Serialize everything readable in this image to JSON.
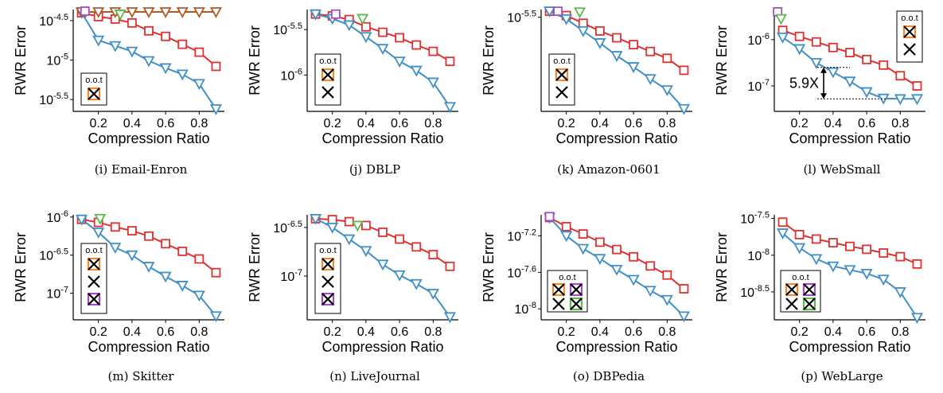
{
  "colors": {
    "red": "#e03030",
    "blue": "#3f8fc8",
    "brown": "#b05a28",
    "green": "#5cb84a",
    "purple": "#a24ec0",
    "orange": "#f08a30",
    "black": "#000000"
  },
  "chart_data": [
    {
      "type": "line",
      "caption": "(i) Email-Enron",
      "xlabel": "Compression Ratio",
      "ylabel": "RWR Error",
      "xlim": [
        0.05,
        0.95
      ],
      "x_ticks": [
        "0.2",
        "0.4",
        "0.6",
        "0.8"
      ],
      "ylim_exp": [
        -5.65,
        -4.36
      ],
      "y_ticks": [
        {
          "exp": -4.5,
          "label": "-4.5"
        },
        {
          "exp": -5,
          "label": "-5"
        },
        {
          "exp": -5.5,
          "label": "-5.5"
        }
      ],
      "series": [
        {
          "color": "red",
          "marker": "square",
          "x": [
            0.1,
            0.2,
            0.3,
            0.4,
            0.5,
            0.6,
            0.7,
            0.8,
            0.9
          ],
          "exp": [
            -4.4,
            -4.45,
            -4.48,
            -4.53,
            -4.63,
            -4.7,
            -4.8,
            -4.9,
            -5.08
          ]
        },
        {
          "color": "blue",
          "marker": "triangle",
          "x": [
            0.1,
            0.2,
            0.3,
            0.4,
            0.5,
            0.6,
            0.7,
            0.8,
            0.9
          ],
          "exp": [
            -4.4,
            -4.75,
            -4.82,
            -4.89,
            -5.01,
            -5.1,
            -5.18,
            -5.3,
            -5.62
          ]
        },
        {
          "color": "brown",
          "marker": "triangle",
          "x": [
            0.1,
            0.2,
            0.3,
            0.4,
            0.5,
            0.6,
            0.7,
            0.8,
            0.9
          ],
          "exp": [
            -4.39,
            -4.39,
            -4.39,
            -4.39,
            -4.39,
            -4.39,
            -4.39,
            -4.39,
            -4.39
          ]
        },
        {
          "color": "purple",
          "marker": "square",
          "x": [
            0.12
          ],
          "exp": [
            -4.38
          ]
        },
        {
          "color": "green",
          "marker": "triangle",
          "x": [
            0.33
          ],
          "exp": [
            -4.42
          ]
        }
      ],
      "oot": {
        "label": "o.o.t",
        "crosses": [
          "orange"
        ]
      }
    },
    {
      "type": "line",
      "caption": "(j) DBLP",
      "xlabel": "Compression Ratio",
      "ylabel": "RWR Error",
      "xlim": [
        0.05,
        0.95
      ],
      "x_ticks": [
        "0.2",
        "0.4",
        "0.6",
        "0.8"
      ],
      "ylim_exp": [
        -6.4,
        -5.28
      ],
      "y_ticks": [
        {
          "exp": -5.5,
          "label": "-5.5"
        },
        {
          "exp": -6,
          "label": "-6"
        }
      ],
      "series": [
        {
          "color": "red",
          "marker": "square",
          "x": [
            0.1,
            0.2,
            0.3,
            0.4,
            0.5,
            0.6,
            0.7,
            0.8,
            0.9
          ],
          "exp": [
            -5.33,
            -5.35,
            -5.39,
            -5.47,
            -5.53,
            -5.59,
            -5.67,
            -5.74,
            -5.85
          ]
        },
        {
          "color": "blue",
          "marker": "triangle",
          "x": [
            0.1,
            0.2,
            0.3,
            0.4,
            0.5,
            0.6,
            0.7,
            0.8,
            0.9
          ],
          "exp": [
            -5.33,
            -5.38,
            -5.45,
            -5.58,
            -5.71,
            -5.85,
            -5.95,
            -6.08,
            -6.35
          ]
        },
        {
          "color": "purple",
          "marker": "square",
          "x": [
            0.22
          ],
          "exp": [
            -5.33
          ]
        },
        {
          "color": "green",
          "marker": "triangle",
          "x": [
            0.38
          ],
          "exp": [
            -5.38
          ]
        }
      ],
      "oot": {
        "label": "o.o.t",
        "crosses": [
          "orange",
          "black"
        ]
      }
    },
    {
      "type": "line",
      "caption": "(k) Amazon-0601",
      "xlabel": "Compression Ratio",
      "ylabel": "RWR Error",
      "xlim": [
        0.05,
        0.95
      ],
      "x_ticks": [
        "0.2",
        "0.4",
        "0.6",
        "0.8"
      ],
      "ylim_exp": [
        -6.6,
        -5.41
      ],
      "y_ticks": [
        {
          "exp": -5.5,
          "label": "-5.5"
        }
      ],
      "series": [
        {
          "color": "red",
          "marker": "square",
          "x": [
            0.1,
            0.2,
            0.3,
            0.4,
            0.5,
            0.6,
            0.7,
            0.8,
            0.9
          ],
          "exp": [
            -5.43,
            -5.48,
            -5.57,
            -5.66,
            -5.74,
            -5.82,
            -5.9,
            -5.98,
            -6.12
          ]
        },
        {
          "color": "blue",
          "marker": "triangle",
          "x": [
            0.1,
            0.2,
            0.3,
            0.4,
            0.5,
            0.6,
            0.7,
            0.8,
            0.9
          ],
          "exp": [
            -5.43,
            -5.52,
            -5.66,
            -5.8,
            -5.95,
            -6.08,
            -6.22,
            -6.35,
            -6.57
          ]
        },
        {
          "color": "purple",
          "marker": "square",
          "x": [
            0.15
          ],
          "exp": [
            -5.43
          ]
        },
        {
          "color": "green",
          "marker": "triangle",
          "x": [
            0.28
          ],
          "exp": [
            -5.44
          ]
        }
      ],
      "oot": {
        "label": "o.o.t",
        "crosses": [
          "orange",
          "black"
        ]
      }
    },
    {
      "type": "line",
      "caption": "(l) WebSmall",
      "xlabel": "Compression Ratio",
      "ylabel": "RWR Error",
      "xlim": [
        0.05,
        0.95
      ],
      "x_ticks": [
        "0.2",
        "0.4",
        "0.6",
        "0.8"
      ],
      "ylim_exp": [
        -7.55,
        -5.35
      ],
      "y_ticks": [
        {
          "exp": -6,
          "label": "-6"
        },
        {
          "exp": -7,
          "label": "-7"
        }
      ],
      "series": [
        {
          "color": "red",
          "marker": "square",
          "x": [
            0.1,
            0.2,
            0.3,
            0.4,
            0.5,
            0.6,
            0.7,
            0.8,
            0.9
          ],
          "exp": [
            -5.8,
            -5.93,
            -6.05,
            -6.17,
            -6.28,
            -6.43,
            -6.55,
            -6.78,
            -7.0
          ]
        },
        {
          "color": "blue",
          "marker": "triangle",
          "x": [
            0.1,
            0.2,
            0.3,
            0.4,
            0.5,
            0.6,
            0.7,
            0.8,
            0.9
          ],
          "exp": [
            -5.95,
            -6.2,
            -6.5,
            -6.7,
            -6.9,
            -7.13,
            -7.27,
            -7.28,
            -7.28
          ]
        },
        {
          "color": "purple",
          "marker": "square",
          "x": [
            0.07
          ],
          "exp": [
            -5.4
          ]
        },
        {
          "color": "green",
          "marker": "triangle",
          "x": [
            0.09
          ],
          "exp": [
            -5.55
          ]
        }
      ],
      "oot": {
        "label": "o.o.t",
        "crosses": [
          "orange",
          "black"
        ]
      },
      "annotation": "5.9X"
    },
    {
      "type": "line",
      "caption": "(m) Skitter",
      "xlabel": "Compression Ratio",
      "ylabel": "RWR Error",
      "xlim": [
        0.05,
        0.95
      ],
      "x_ticks": [
        "0.2",
        "0.4",
        "0.6",
        "0.8"
      ],
      "ylim_exp": [
        -7.35,
        -5.97
      ],
      "y_ticks": [
        {
          "exp": -6,
          "label": "-6"
        },
        {
          "exp": -6.5,
          "label": "-6.5"
        },
        {
          "exp": -7,
          "label": "-7"
        }
      ],
      "series": [
        {
          "color": "red",
          "marker": "square",
          "x": [
            0.1,
            0.2,
            0.3,
            0.4,
            0.5,
            0.6,
            0.7,
            0.8,
            0.9
          ],
          "exp": [
            -6.03,
            -6.07,
            -6.13,
            -6.18,
            -6.25,
            -6.35,
            -6.45,
            -6.55,
            -6.73
          ]
        },
        {
          "color": "blue",
          "marker": "triangle",
          "x": [
            0.1,
            0.2,
            0.3,
            0.4,
            0.5,
            0.6,
            0.7,
            0.8,
            0.9
          ],
          "exp": [
            -6.03,
            -6.2,
            -6.4,
            -6.5,
            -6.65,
            -6.78,
            -6.9,
            -7.03,
            -7.3
          ]
        },
        {
          "color": "green",
          "marker": "triangle",
          "x": [
            0.21
          ],
          "exp": [
            -6.02
          ]
        }
      ],
      "oot": {
        "label": "o.o.t",
        "crosses": [
          "orange",
          "black",
          "purple"
        ]
      }
    },
    {
      "type": "line",
      "caption": "(n) LiveJournal",
      "xlabel": "Compression Ratio",
      "ylabel": "RWR Error",
      "xlim": [
        0.05,
        0.95
      ],
      "x_ticks": [
        "0.2",
        "0.4",
        "0.6",
        "0.8"
      ],
      "ylim_exp": [
        -7.45,
        -6.37
      ],
      "y_ticks": [
        {
          "exp": -6.5,
          "label": "-6.5"
        },
        {
          "exp": -7,
          "label": "-7"
        }
      ],
      "series": [
        {
          "color": "red",
          "marker": "square",
          "x": [
            0.1,
            0.2,
            0.3,
            0.4,
            0.5,
            0.6,
            0.7,
            0.8,
            0.9
          ],
          "exp": [
            -6.41,
            -6.42,
            -6.44,
            -6.48,
            -6.55,
            -6.62,
            -6.7,
            -6.78,
            -6.9
          ]
        },
        {
          "color": "blue",
          "marker": "triangle",
          "x": [
            0.1,
            0.2,
            0.3,
            0.4,
            0.5,
            0.6,
            0.7,
            0.8,
            0.9
          ],
          "exp": [
            -6.41,
            -6.5,
            -6.62,
            -6.74,
            -6.88,
            -6.99,
            -7.08,
            -7.18,
            -7.42
          ]
        },
        {
          "color": "green",
          "marker": "triangle",
          "x": [
            0.35
          ],
          "exp": [
            -6.48
          ]
        }
      ],
      "oot": {
        "label": "o.o.t",
        "crosses": [
          "orange",
          "black",
          "purple"
        ]
      }
    },
    {
      "type": "line",
      "caption": "(o) DBPedia",
      "xlabel": "Compression Ratio",
      "ylabel": "RWR Error",
      "xlim": [
        0.05,
        0.95
      ],
      "x_ticks": [
        "0.2",
        "0.4",
        "0.6",
        "0.8"
      ],
      "ylim_exp": [
        -8.12,
        -6.97
      ],
      "y_ticks": [
        {
          "exp": -7.2,
          "label": "-7.2"
        },
        {
          "exp": -7.6,
          "label": "-7.6"
        },
        {
          "exp": -8,
          "label": "-8"
        }
      ],
      "series": [
        {
          "color": "red",
          "marker": "square",
          "x": [
            0.1,
            0.2,
            0.3,
            0.4,
            0.5,
            0.6,
            0.7,
            0.8,
            0.9
          ],
          "exp": [
            -7.0,
            -7.1,
            -7.18,
            -7.27,
            -7.35,
            -7.43,
            -7.53,
            -7.63,
            -7.78
          ]
        },
        {
          "color": "blue",
          "marker": "triangle",
          "x": [
            0.1,
            0.2,
            0.3,
            0.4,
            0.5,
            0.6,
            0.7,
            0.8,
            0.9
          ],
          "exp": [
            -7.0,
            -7.2,
            -7.34,
            -7.45,
            -7.57,
            -7.68,
            -7.8,
            -7.9,
            -8.08
          ]
        },
        {
          "color": "purple",
          "marker": "square",
          "x": [
            0.1
          ],
          "exp": [
            -6.99
          ]
        }
      ],
      "oot": {
        "label": "o.o.t",
        "crosses": [
          "orange",
          "purple",
          "black",
          "green"
        ]
      }
    },
    {
      "type": "line",
      "caption": "(p) WebLarge",
      "xlabel": "Compression Ratio",
      "ylabel": "RWR Error",
      "xlim": [
        0.05,
        0.95
      ],
      "x_ticks": [
        "0.2",
        "0.4",
        "0.6",
        "0.8"
      ],
      "ylim_exp": [
        -8.88,
        -7.45
      ],
      "y_ticks": [
        {
          "exp": -7.5,
          "label": "-7.5"
        },
        {
          "exp": -8,
          "label": "-8"
        },
        {
          "exp": -8.5,
          "label": "-8.5"
        }
      ],
      "series": [
        {
          "color": "red",
          "marker": "square",
          "x": [
            0.1,
            0.2,
            0.3,
            0.4,
            0.5,
            0.6,
            0.7,
            0.8,
            0.9
          ],
          "exp": [
            -7.55,
            -7.72,
            -7.78,
            -7.83,
            -7.88,
            -7.92,
            -7.97,
            -8.02,
            -8.12
          ]
        },
        {
          "color": "blue",
          "marker": "triangle",
          "x": [
            0.1,
            0.2,
            0.3,
            0.4,
            0.5,
            0.6,
            0.7,
            0.8,
            0.9
          ],
          "exp": [
            -7.7,
            -7.9,
            -8.05,
            -8.15,
            -8.2,
            -8.25,
            -8.33,
            -8.5,
            -8.85
          ]
        }
      ],
      "oot": {
        "label": "o.o.t",
        "crosses": [
          "orange",
          "purple",
          "black",
          "green"
        ]
      }
    }
  ]
}
